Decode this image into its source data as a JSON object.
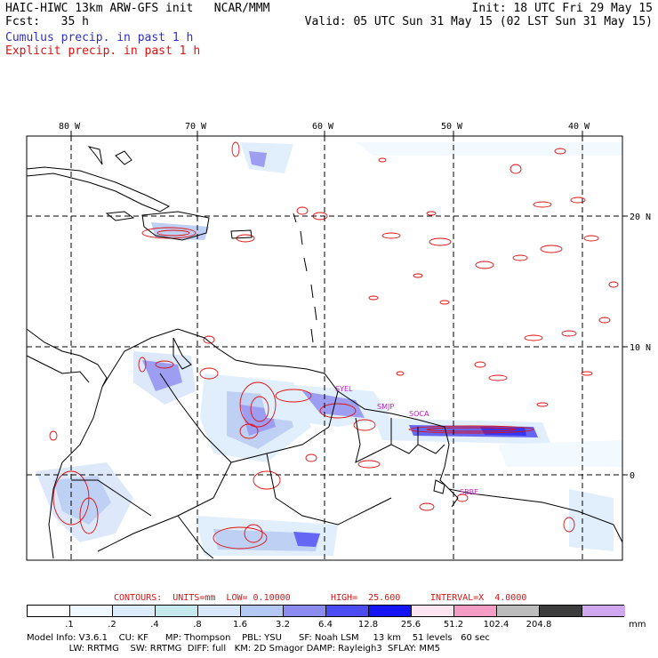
{
  "header": {
    "model_line": "HAIC-HIWC 13km ARW-GFS init   NCAR/MMM",
    "fcst_label": "Fcst:   35 h",
    "init_line": "Init: 18 UTC Fri 29 May 15",
    "valid_line": "Valid: 05 UTC Sun 31 May 15 (02 LST Sun 31 May 15)",
    "legend_cumulus": "Cumulus precip. in past 1 h",
    "legend_explicit": "Explicit precip. in past 1 h",
    "color_cumulus": "#3030c0",
    "color_explicit": "#e01010"
  },
  "map": {
    "lon_labels": [
      "80 W",
      "70 W",
      "60 W",
      "50 W",
      "40 W"
    ],
    "lat_labels": [
      "20 N",
      "10 N",
      "0"
    ],
    "stations": [
      "SYEL",
      "SMJP",
      "SOCA",
      "SBBE"
    ],
    "station_color": "#c020c0"
  },
  "contours": {
    "label": "CONTOURS:  UNITS=mm  LOW= 0.10000",
    "high": "HIGH=  25.600",
    "interval": "INTERVAL=X  4.0000",
    "color": "#e01010"
  },
  "colorbar": {
    "thresholds": [
      ".1",
      ".2",
      ".4",
      ".8",
      "1.6",
      "3.2",
      "6.4",
      "12.8",
      "25.6",
      "51.2",
      "102.4",
      "204.8"
    ],
    "units": "mm",
    "colors": [
      "#ffffff",
      "#f0f8ff",
      "#dcecfc",
      "#c4e8ec",
      "#d8e6fa",
      "#b4c8f4",
      "#8c8cf0",
      "#4c4cf4",
      "#1414f4",
      "#fce4f0",
      "#f49cc4",
      "#bcbcbc",
      "#3c3c3c",
      "#d0a8f0"
    ]
  },
  "footer": {
    "line1": "Model Info: V3.6.1    CU: KF      MP: Thompson    PBL: YSU      SF: Noah LSM     13 km    51 levels   60 sec",
    "line2": "               LW: RRTMG    SW: RRTMG  DIFF: full   KM: 2D Smagor DAMP: Rayleigh3  SFLAY: MM5"
  }
}
